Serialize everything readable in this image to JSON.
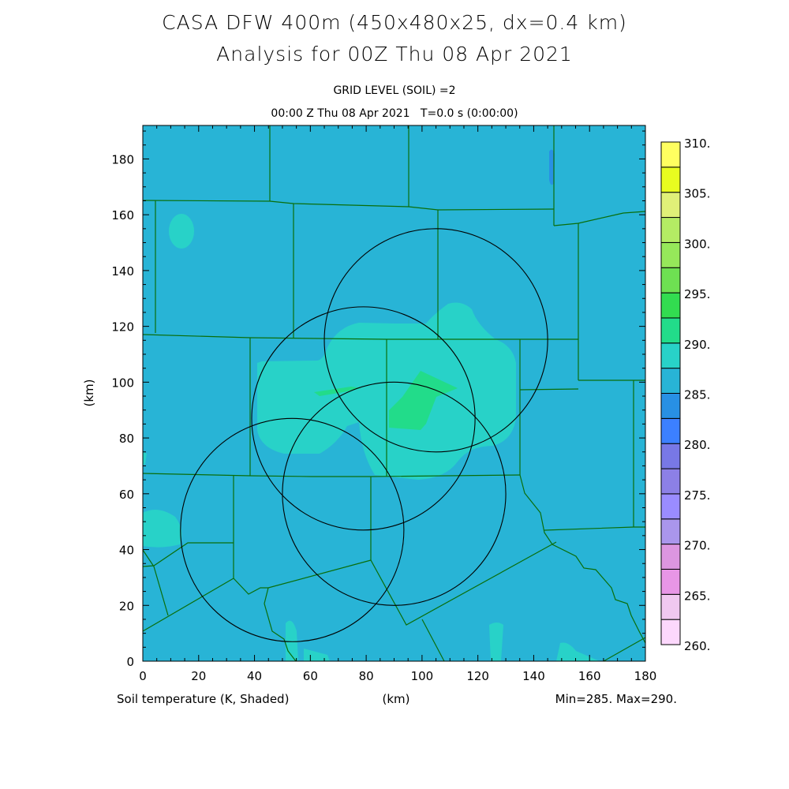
{
  "chart_data": {
    "type": "heatmap",
    "title": "CASA DFW 400m (450x480x25, dx=0.4 km)",
    "subtitle": "Analysis for 00Z Thu 08 Apr 2021",
    "level_label": "GRID LEVEL (SOIL) =2",
    "time_label": "00:00 Z Thu 08 Apr 2021   T=0.0 s (0:00:00)",
    "xlabel": "(km)",
    "ylabel": "(km)",
    "xlim": [
      0,
      180
    ],
    "ylim": [
      0,
      192
    ],
    "xticks": [
      "0",
      "20",
      "40",
      "60",
      "80",
      "100",
      "120",
      "140",
      "160",
      "180"
    ],
    "yticks": [
      "0",
      "20",
      "40",
      "60",
      "80",
      "100",
      "120",
      "140",
      "160",
      "180"
    ],
    "field_label": "Soil temperature (K, Shaded)",
    "minmax_label": "Min=285. Max=290.",
    "colorbar": {
      "levels": [
        260,
        262.5,
        265,
        267.5,
        270,
        272.5,
        275,
        277.5,
        280,
        282.5,
        285,
        287.5,
        290,
        292.5,
        295,
        297.5,
        300,
        302.5,
        305,
        307.5,
        310
      ],
      "tick_labels": [
        "260.",
        "265.",
        "270.",
        "275.",
        "280.",
        "285.",
        "290.",
        "295.",
        "300.",
        "305.",
        "310."
      ],
      "colors": [
        "#fcd8fc",
        "#f0c8f0",
        "#e896e6",
        "#dc96e0",
        "#aa96ec",
        "#9a8cff",
        "#8c80e6",
        "#7878e6",
        "#3c80ff",
        "#2890e4",
        "#28b4d6",
        "#28d2c8",
        "#22dc8a",
        "#32dc50",
        "#6ee052",
        "#96e85a",
        "#b4ec64",
        "#e0f078",
        "#e8fc20",
        "#ffff60"
      ]
    },
    "range_rings_km": [
      {
        "x": 105,
        "y": 115,
        "r": 40
      },
      {
        "x": 79,
        "y": 87,
        "r": 40
      },
      {
        "x": 90,
        "y": 60,
        "r": 40
      },
      {
        "x": 53.5,
        "y": 47,
        "r": 40
      }
    ],
    "colors": {
      "background_field": "#28b4d6",
      "warm_field": "#28d2c8",
      "warmest_field": "#22dc8a",
      "cool_field": "#2890e4",
      "county_lines": "#0a6e0a",
      "rings": "#000000"
    }
  }
}
